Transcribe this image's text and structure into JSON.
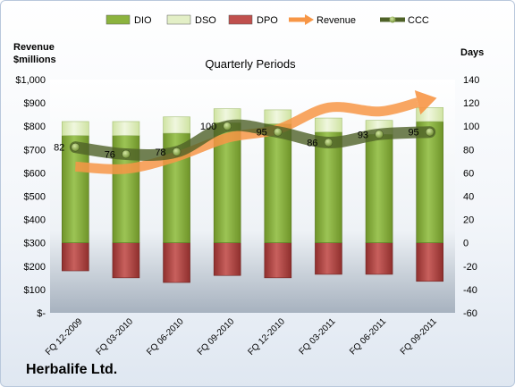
{
  "chart_data": {
    "type": "bar",
    "title": "Quarterly Periods",
    "company": "Herbalife Ltd.",
    "categories": [
      "FQ 12-2009",
      "FQ 03-2010",
      "FQ 06-2010",
      "FQ 09-2010",
      "FQ 12-2010",
      "FQ 03-2011",
      "FQ 06-2011",
      "FQ 09-2011"
    ],
    "y_left": {
      "label_line1": "Revenue",
      "label_line2": "$millions",
      "ticks": [
        "$-",
        "$100",
        "$200",
        "$300",
        "$400",
        "$500",
        "$600",
        "$700",
        "$800",
        "$900",
        "$1,000"
      ],
      "range": [
        0,
        1000
      ]
    },
    "y_right": {
      "label": "Days",
      "ticks": [
        "-60",
        "-40",
        "-20",
        "0",
        "20",
        "40",
        "60",
        "80",
        "100",
        "120",
        "140"
      ],
      "range": [
        -60,
        140
      ]
    },
    "series": [
      {
        "name": "DIO",
        "axis": "right",
        "type": "stacked-bar",
        "color": "#8cb33e",
        "values": [
          92,
          92,
          94,
          103,
          102,
          95,
          93,
          104
        ]
      },
      {
        "name": "DSO",
        "axis": "right",
        "type": "stacked-bar",
        "color": "#e3efc6",
        "values": [
          12,
          12,
          14,
          12,
          12,
          12,
          12,
          12
        ]
      },
      {
        "name": "DPO",
        "axis": "right",
        "type": "negative-bar",
        "color": "#c0504d",
        "values": [
          -24,
          -30,
          -34,
          -28,
          -30,
          -27,
          -27,
          -33
        ]
      },
      {
        "name": "Revenue",
        "axis": "left",
        "type": "arrow-line",
        "color": "#f79646",
        "values": [
          627,
          617,
          670,
          750,
          787,
          880,
          863,
          914
        ]
      },
      {
        "name": "CCC",
        "axis": "right",
        "type": "line-marker",
        "color": "#4f6228",
        "values": [
          82,
          76,
          78,
          100,
          95,
          86,
          93,
          95
        ]
      }
    ],
    "data_labels": [
      "82",
      "76",
      "78",
      "100",
      "95",
      "86",
      "93",
      "95"
    ],
    "legend_position": "top",
    "grid": false
  }
}
